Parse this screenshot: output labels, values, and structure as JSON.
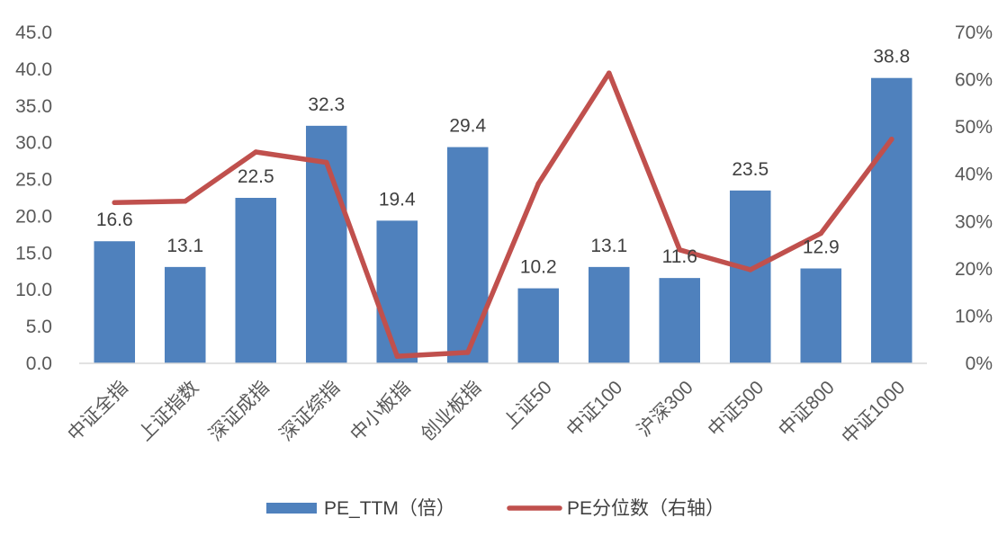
{
  "chart_data": {
    "type": "bar",
    "categories": [
      "中证全指",
      "上证指数",
      "深证成指",
      "深证综指",
      "中小板指",
      "创业板指",
      "上证50",
      "中证100",
      "沪深300",
      "中证500",
      "中证800",
      "中证1000"
    ],
    "series": [
      {
        "name": "PE_TTM（倍）",
        "type": "bar",
        "axis": "left",
        "color": "#4f81bd",
        "values": [
          16.6,
          13.1,
          22.5,
          32.3,
          19.4,
          29.4,
          10.2,
          13.1,
          11.6,
          23.5,
          12.9,
          38.8
        ],
        "labels": [
          "16.6",
          "13.1",
          "22.5",
          "32.3",
          "19.4",
          "29.4",
          "10.2",
          "13.1",
          "11.6",
          "23.5",
          "12.9",
          "38.8"
        ]
      },
      {
        "name": "PE分位数（右轴）",
        "type": "line",
        "axis": "right",
        "color": "#c0504d",
        "values": [
          0.34,
          0.343,
          0.447,
          0.425,
          0.015,
          0.023,
          0.38,
          0.614,
          0.24,
          0.198,
          0.275,
          0.474
        ]
      }
    ],
    "y_left": {
      "min": 0,
      "max": 45,
      "step": 5,
      "tick_labels": [
        "0.0",
        "5.0",
        "10.0",
        "15.0",
        "20.0",
        "25.0",
        "30.0",
        "35.0",
        "40.0",
        "45.0"
      ]
    },
    "y_right": {
      "min": 0,
      "max": 0.7,
      "step": 0.1,
      "tick_labels": [
        "0%",
        "10%",
        "20%",
        "30%",
        "40%",
        "50%",
        "60%",
        "70%"
      ]
    },
    "grid": false,
    "legend_position": "bottom"
  }
}
